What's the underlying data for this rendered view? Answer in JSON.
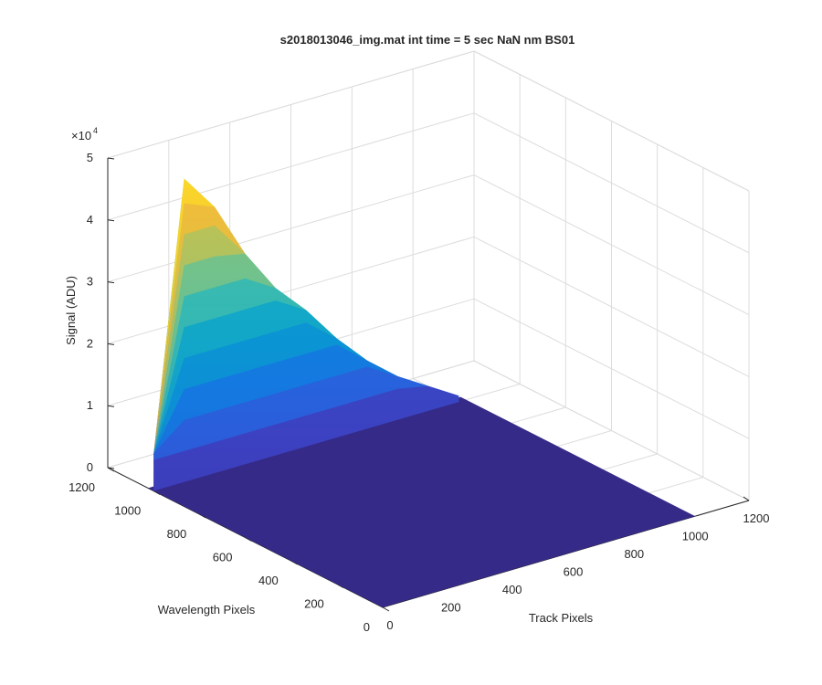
{
  "chart_data": {
    "type": "surface",
    "title": "s2018013046_img.mat int time = 5 sec  NaN nm BS01",
    "xlabel": "Track Pixels",
    "ylabel": "Wavelength Pixels",
    "zlabel": "Signal (ADU)",
    "z_multiplier_label": "×10",
    "z_multiplier_exponent": "4",
    "xlim": [
      0,
      1200
    ],
    "ylim": [
      0,
      1200
    ],
    "zlim": [
      0,
      50000
    ],
    "x_ticks": [
      "0",
      "200",
      "400",
      "600",
      "800",
      "1000",
      "1200"
    ],
    "y_ticks": [
      "0",
      "200",
      "400",
      "600",
      "800",
      "1000",
      "1200"
    ],
    "z_ticks": [
      "0",
      "1",
      "2",
      "3",
      "4",
      "5"
    ],
    "grid": true,
    "colormap": "parula",
    "colors": {
      "parula_low": "#352a87",
      "parula_mid": "#1ab2c4",
      "parula_high": "#f9d52a",
      "grid": "#dcdcdc",
      "axis": "#262626"
    },
    "surface": {
      "nonzero_track_range": [
        0,
        1000
      ],
      "nonzero_wavelength_range": [
        1000,
        1024
      ],
      "x_track": [
        0,
        100,
        200,
        300,
        400,
        500,
        600,
        700,
        800,
        900,
        1000
      ],
      "peak_signal_along_track": [
        6000,
        49000,
        43000,
        34000,
        27000,
        22000,
        16000,
        11000,
        7000,
        4000,
        1000
      ],
      "floor_signal": 0,
      "surface_extent": {
        "x": [
          0,
          1024
        ],
        "y": [
          0,
          1024
        ]
      }
    }
  }
}
